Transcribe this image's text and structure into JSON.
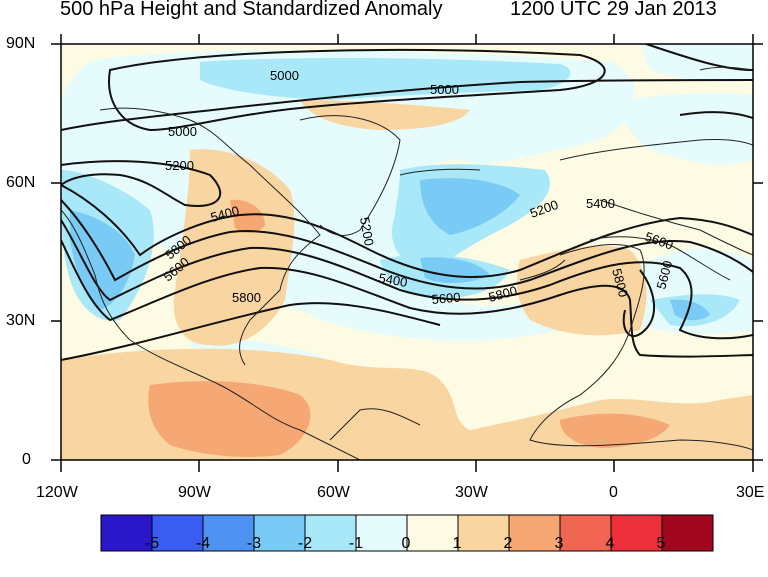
{
  "title": {
    "left": "500 hPa Height and Standardized Anomaly",
    "right": "1200 UTC 29 Jan 2013"
  },
  "axes": {
    "lat_labels": [
      "90N",
      "60N",
      "30N",
      "0"
    ],
    "lon_labels": [
      "120W",
      "90W",
      "60W",
      "30W",
      "0",
      "30E"
    ],
    "lon_range": [
      -120,
      30
    ],
    "lat_range": [
      0,
      90
    ]
  },
  "contour_labels": [
    "5000",
    "5000",
    "5000",
    "5200",
    "5200",
    "5200",
    "5400",
    "5400",
    "5400",
    "5600",
    "5600",
    "5600",
    "5800",
    "5800",
    "5800",
    "5800",
    "5600"
  ],
  "colorbar": {
    "labels": [
      "-5",
      "-4",
      "-3",
      "-2",
      "-1",
      "0",
      "1",
      "2",
      "3",
      "4",
      "5"
    ],
    "colors": [
      "#2a18c8",
      "#3a5cf0",
      "#4f93f2",
      "#79cbf6",
      "#a8e8f8",
      "#e6fbfc",
      "#fdfbe3",
      "#f9d5a2",
      "#f6a874",
      "#f06652",
      "#ee2f3c",
      "#a0071f"
    ]
  },
  "colors": {
    "ocean_background": "#fdfbe3",
    "contour": "#111111",
    "coastline": "#222222"
  }
}
